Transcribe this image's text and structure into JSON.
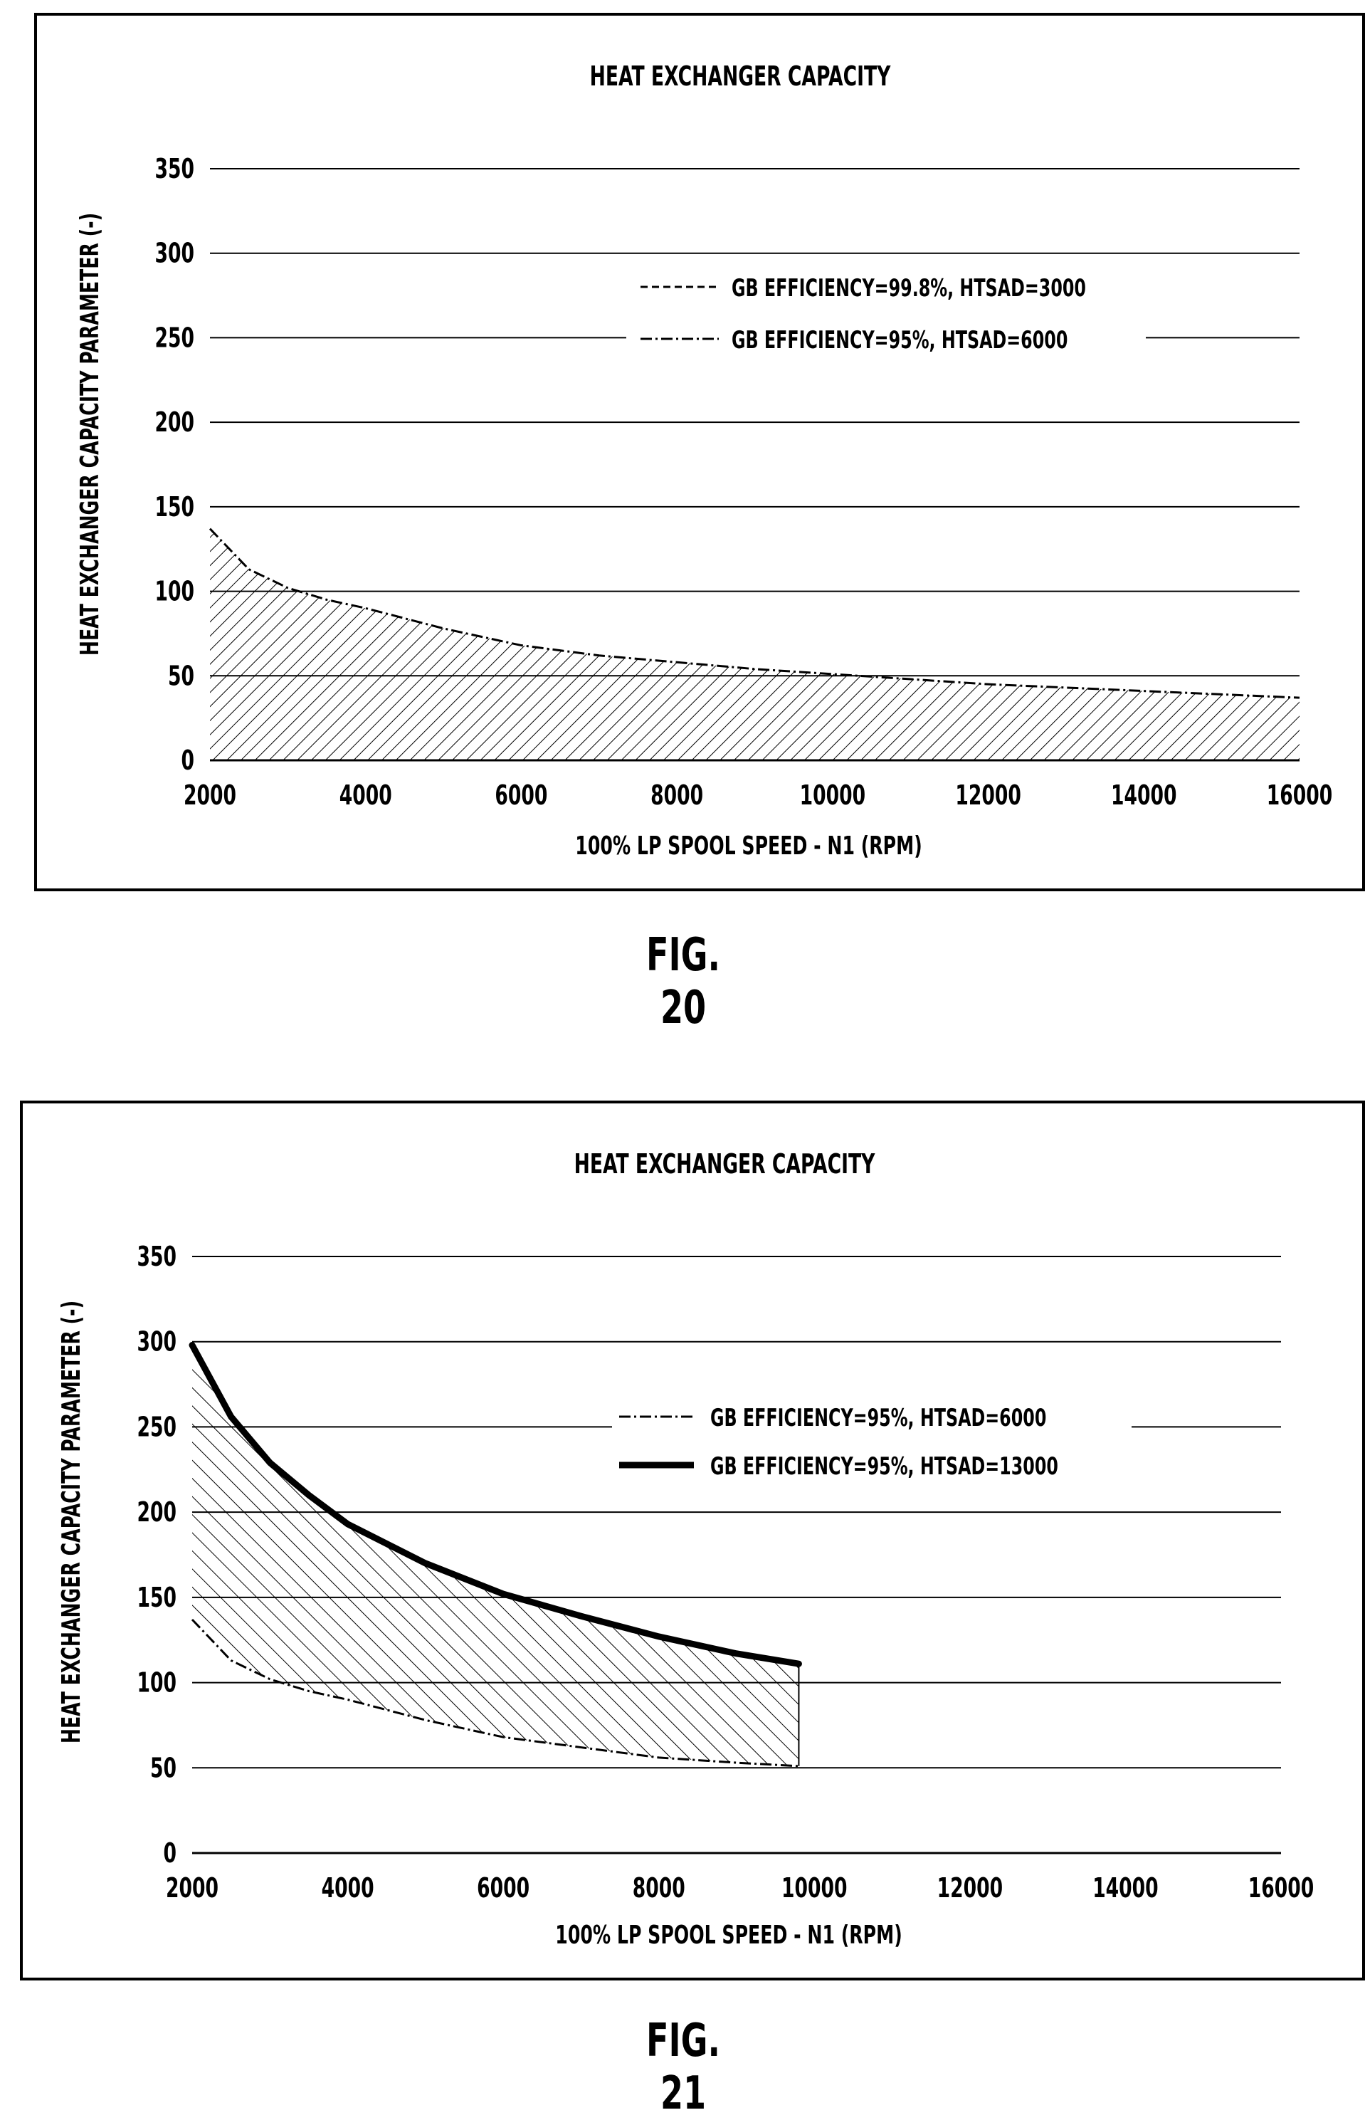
{
  "figures": [
    {
      "label": "FIG. 20"
    },
    {
      "label": "FIG. 21"
    }
  ],
  "chart_data": [
    {
      "type": "line",
      "title": "HEAT EXCHANGER CAPACITY",
      "xlabel": "100% LP SPOOL SPEED - N1 (RPM)",
      "ylabel": "HEAT EXCHANGER CAPACITY PARAMETER (-)",
      "xlim": [
        2000,
        16000
      ],
      "ylim": [
        0,
        350
      ],
      "x_ticks": [
        "2000",
        "4000",
        "6000",
        "8000",
        "10000",
        "12000",
        "14000",
        "16000"
      ],
      "y_ticks": [
        "0",
        "50",
        "100",
        "150",
        "200",
        "250",
        "300",
        "350"
      ],
      "grid": true,
      "legend": "upper-right",
      "series": [
        {
          "name": "GB EFFICIENCY=99.8%, HTSAD=3000",
          "style": "dashed",
          "x": [
            2000,
            16000
          ],
          "y": [
            0,
            0
          ]
        },
        {
          "name": "GB EFFICIENCY=95%, HTSAD=6000",
          "style": "dash-dot",
          "x": [
            2000,
            2500,
            3000,
            3500,
            4000,
            5000,
            6000,
            7000,
            8000,
            9000,
            10000,
            11000,
            12000,
            13000,
            14000,
            15000,
            16000
          ],
          "y": [
            137,
            113,
            102,
            95,
            90,
            78,
            68,
            62,
            58,
            54,
            51,
            48,
            45,
            43,
            41,
            39,
            37
          ]
        }
      ],
      "shaded_region": {
        "between": [
          "GB EFFICIENCY=99.8%, HTSAD=3000",
          "GB EFFICIENCY=95%, HTSAD=6000"
        ],
        "x_range": [
          2000,
          16000
        ]
      }
    },
    {
      "type": "line",
      "title": "HEAT EXCHANGER CAPACITY",
      "xlabel": "100% LP SPOOL SPEED - N1 (RPM)",
      "ylabel": "HEAT EXCHANGER CAPACITY PARAMETER (-)",
      "xlim": [
        2000,
        16000
      ],
      "ylim": [
        0,
        350
      ],
      "x_ticks": [
        "2000",
        "4000",
        "6000",
        "8000",
        "10000",
        "12000",
        "14000",
        "16000"
      ],
      "y_ticks": [
        "0",
        "50",
        "100",
        "150",
        "200",
        "250",
        "300",
        "350"
      ],
      "grid": true,
      "legend": "right",
      "series": [
        {
          "name": "GB EFFICIENCY=95%, HTSAD=6000",
          "style": "dash-dot",
          "x": [
            2000,
            2500,
            3000,
            3500,
            4000,
            5000,
            6000,
            7000,
            8000,
            9000,
            9800
          ],
          "y": [
            137,
            113,
            102,
            95,
            90,
            78,
            68,
            62,
            56,
            53,
            51
          ]
        },
        {
          "name": "GB EFFICIENCY=95%, HTSAD=13000",
          "style": "solid-thick",
          "x": [
            2000,
            2500,
            3000,
            3500,
            4000,
            5000,
            6000,
            7000,
            8000,
            9000,
            9800
          ],
          "y": [
            298,
            256,
            229,
            210,
            193,
            170,
            152,
            139,
            127,
            117,
            111
          ]
        }
      ],
      "shaded_region": {
        "between": [
          "GB EFFICIENCY=95%, HTSAD=6000",
          "GB EFFICIENCY=95%, HTSAD=13000"
        ],
        "x_range": [
          2000,
          9800
        ]
      }
    }
  ]
}
